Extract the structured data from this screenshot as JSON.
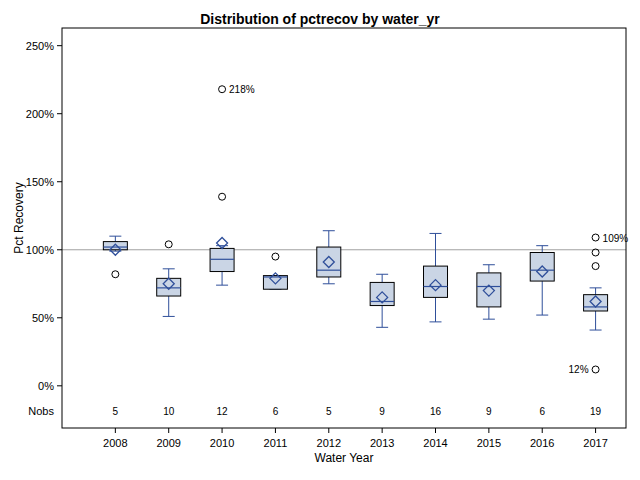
{
  "chart_data": {
    "type": "box",
    "title": "Distribution of pctrecov by water_yr",
    "x_label": "Water Year",
    "y_label": "Pct Recovery",
    "categories": [
      "2008",
      "2009",
      "2010",
      "2011",
      "2012",
      "2013",
      "2014",
      "2015",
      "2016",
      "2017"
    ],
    "ylim": [
      -31,
      263
    ],
    "yticks": [
      {
        "value": 0,
        "label": "0%"
      },
      {
        "value": 50,
        "label": "50%"
      },
      {
        "value": 100,
        "label": "100%"
      },
      {
        "value": 150,
        "label": "150%"
      },
      {
        "value": 200,
        "label": "200%"
      },
      {
        "value": 250,
        "label": "250%"
      }
    ],
    "reference_line": 100,
    "nobs_label": "Nobs",
    "boxes": [
      {
        "q1": 100,
        "median": 102,
        "q3": 106,
        "whisker_low": 99,
        "whisker_high": 110,
        "mean": 100,
        "outliers": [
          82
        ],
        "outlier_labels": [
          null
        ],
        "n": 5
      },
      {
        "q1": 66,
        "median": 72,
        "q3": 79,
        "whisker_low": 51,
        "whisker_high": 86,
        "mean": 75,
        "outliers": [
          104
        ],
        "outlier_labels": [
          null
        ],
        "n": 10
      },
      {
        "q1": 84,
        "median": 93,
        "q3": 101,
        "whisker_low": 74,
        "whisker_high": 103,
        "mean": 105,
        "outliers": [
          139,
          218
        ],
        "outlier_labels": [
          null,
          "218%"
        ],
        "n": 12
      },
      {
        "q1": 71,
        "median": 80,
        "q3": 81,
        "whisker_low": 71,
        "whisker_high": 81,
        "mean": 79,
        "outliers": [
          95
        ],
        "outlier_labels": [
          null
        ],
        "n": 6
      },
      {
        "q1": 80,
        "median": 85,
        "q3": 102,
        "whisker_low": 75,
        "whisker_high": 114,
        "mean": 91,
        "outliers": [],
        "outlier_labels": [],
        "n": 5
      },
      {
        "q1": 59,
        "median": 62,
        "q3": 76,
        "whisker_low": 43,
        "whisker_high": 82,
        "mean": 65,
        "outliers": [],
        "outlier_labels": [],
        "n": 9
      },
      {
        "q1": 65,
        "median": 73,
        "q3": 88,
        "whisker_low": 47,
        "whisker_high": 112,
        "mean": 74,
        "outliers": [],
        "outlier_labels": [],
        "n": 16
      },
      {
        "q1": 58,
        "median": 73,
        "q3": 83,
        "whisker_low": 49,
        "whisker_high": 89,
        "mean": 70,
        "outliers": [],
        "outlier_labels": [],
        "n": 9
      },
      {
        "q1": 77,
        "median": 85,
        "q3": 98,
        "whisker_low": 52,
        "whisker_high": 103,
        "mean": 84,
        "outliers": [],
        "outlier_labels": [],
        "n": 6
      },
      {
        "q1": 55,
        "median": 58,
        "q3": 67,
        "whisker_low": 41,
        "whisker_high": 72,
        "mean": 62,
        "outliers": [
          88,
          98,
          109,
          12
        ],
        "outlier_labels": [
          null,
          null,
          "109%",
          "12%"
        ],
        "n": 19
      }
    ]
  }
}
